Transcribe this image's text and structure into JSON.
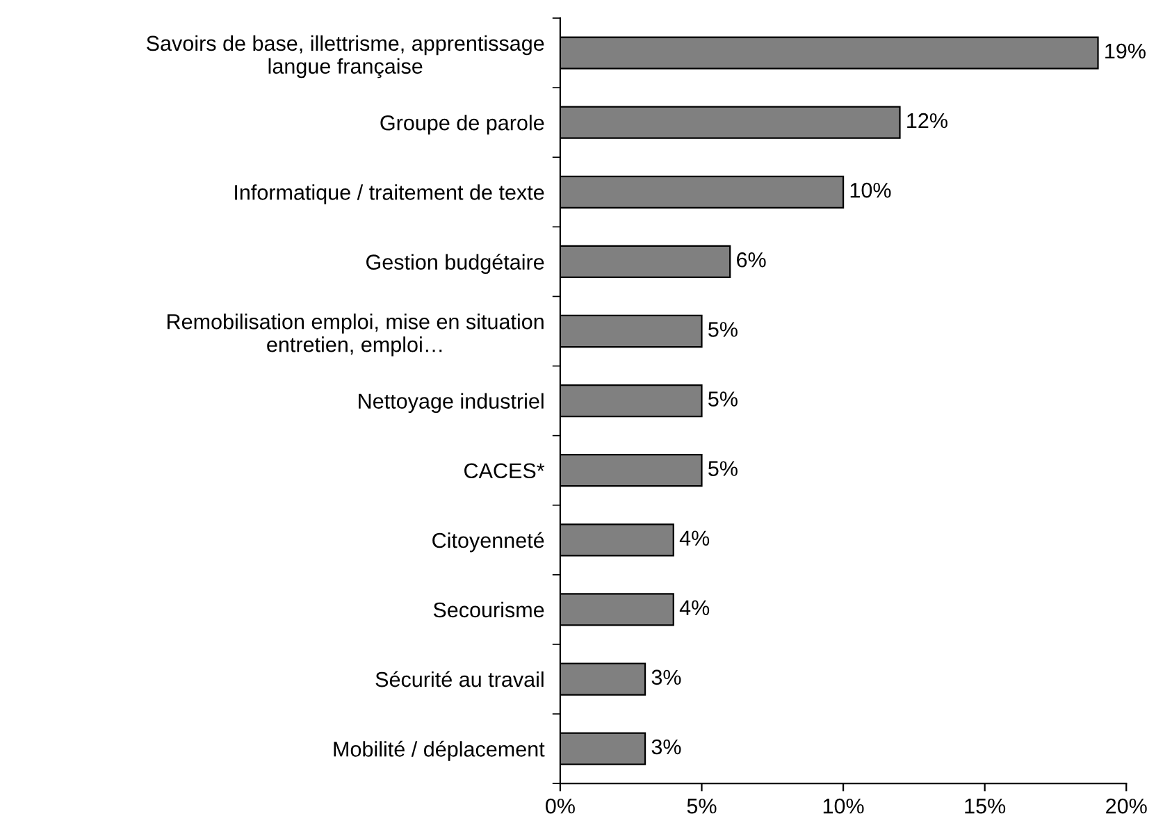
{
  "chart_data": {
    "type": "bar",
    "orientation": "horizontal",
    "categories": [
      "Savoirs de base, illettrisme, apprentissage\nlangue française",
      "Groupe de parole",
      "Informatique / traitement de texte",
      "Gestion budgétaire",
      "Remobilisation emploi, mise en situation\nentretien, emploi…",
      "Nettoyage industriel",
      "CACES*",
      "Citoyenneté",
      "Secourisme",
      "Sécurité au travail",
      "Mobilité / déplacement"
    ],
    "values": [
      19,
      12,
      10,
      6,
      5,
      5,
      5,
      4,
      4,
      3,
      3
    ],
    "value_labels": [
      "19%",
      "12%",
      "10%",
      "6%",
      "5%",
      "5%",
      "5%",
      "4%",
      "4%",
      "3%",
      "3%"
    ],
    "color": "#808080",
    "xlim": [
      0,
      20
    ],
    "xticks": [
      {
        "value": 0,
        "label": "0%"
      },
      {
        "value": 5,
        "label": "5%"
      },
      {
        "value": 10,
        "label": "10%"
      },
      {
        "value": 15,
        "label": "15%"
      },
      {
        "value": 20,
        "label": "20%"
      }
    ],
    "grid": false,
    "legend": false
  }
}
